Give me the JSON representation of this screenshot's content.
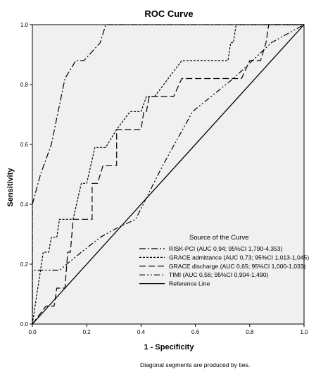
{
  "chart_data": {
    "type": "line",
    "title": "ROC Curve",
    "xlabel": "1 - Specificity",
    "ylabel": "Sensitivity",
    "xlim": [
      0,
      1
    ],
    "ylim": [
      0,
      1
    ],
    "x_ticks": [
      "0.0",
      "0.2",
      "0.4",
      "0.6",
      "0.8",
      "1.0"
    ],
    "y_ticks": [
      "0.0",
      "0.2",
      "0.4",
      "0.6",
      "0.8",
      "1.0"
    ],
    "grid": false,
    "background_color": "#f0f0f0",
    "legend_title": "Source of the Curve",
    "legend_position": "bottom-right",
    "footnote": "Diagonal segments are produced by ties.",
    "series": [
      {
        "name": "RISK-PCI (AUC 0,94; 95%CI 1,790-4,353)",
        "dash": "dash-dot",
        "points": [
          [
            0,
            0
          ],
          [
            0,
            0.4
          ],
          [
            0.03,
            0.5
          ],
          [
            0.07,
            0.6
          ],
          [
            0.12,
            0.82
          ],
          [
            0.16,
            0.88
          ],
          [
            0.19,
            0.88
          ],
          [
            0.25,
            0.94
          ],
          [
            0.27,
            1.0
          ],
          [
            1.0,
            1.0
          ]
        ]
      },
      {
        "name": "GRACE admittance (AUC 0,73; 95%CI 1,013-1,045)",
        "dash": "short-dash",
        "points": [
          [
            0,
            0
          ],
          [
            0.02,
            0.12
          ],
          [
            0.03,
            0.18
          ],
          [
            0.04,
            0.24
          ],
          [
            0.06,
            0.24
          ],
          [
            0.07,
            0.29
          ],
          [
            0.09,
            0.29
          ],
          [
            0.1,
            0.35
          ],
          [
            0.15,
            0.35
          ],
          [
            0.18,
            0.47
          ],
          [
            0.2,
            0.47
          ],
          [
            0.23,
            0.59
          ],
          [
            0.27,
            0.59
          ],
          [
            0.31,
            0.65
          ],
          [
            0.36,
            0.71
          ],
          [
            0.4,
            0.71
          ],
          [
            0.42,
            0.76
          ],
          [
            0.45,
            0.76
          ],
          [
            0.5,
            0.82
          ],
          [
            0.55,
            0.88
          ],
          [
            0.6,
            0.88
          ],
          [
            0.72,
            0.88
          ],
          [
            0.73,
            0.94
          ],
          [
            0.74,
            0.94
          ],
          [
            0.75,
            1.0
          ],
          [
            1.0,
            1.0
          ]
        ]
      },
      {
        "name": "GRACE discharge (AUC 0,65; 95%CI 1,000-1,033)",
        "dash": "long-dash",
        "points": [
          [
            0,
            0
          ],
          [
            0.05,
            0.06
          ],
          [
            0.08,
            0.06
          ],
          [
            0.09,
            0.12
          ],
          [
            0.12,
            0.12
          ],
          [
            0.13,
            0.24
          ],
          [
            0.14,
            0.24
          ],
          [
            0.15,
            0.35
          ],
          [
            0.22,
            0.35
          ],
          [
            0.22,
            0.47
          ],
          [
            0.24,
            0.47
          ],
          [
            0.26,
            0.53
          ],
          [
            0.31,
            0.53
          ],
          [
            0.31,
            0.65
          ],
          [
            0.4,
            0.65
          ],
          [
            0.41,
            0.71
          ],
          [
            0.42,
            0.71
          ],
          [
            0.43,
            0.76
          ],
          [
            0.52,
            0.76
          ],
          [
            0.55,
            0.82
          ],
          [
            0.75,
            0.82
          ],
          [
            0.77,
            0.82
          ],
          [
            0.8,
            0.88
          ],
          [
            0.84,
            0.88
          ],
          [
            0.86,
            0.94
          ],
          [
            0.87,
            1.0
          ],
          [
            1.0,
            1.0
          ]
        ]
      },
      {
        "name": "TIMI (AUC 0,56; 95%CI 0,904-1,490)",
        "dash": "dash-dot-dot",
        "points": [
          [
            0,
            0
          ],
          [
            0,
            0.18
          ],
          [
            0.1,
            0.18
          ],
          [
            0.18,
            0.24
          ],
          [
            0.25,
            0.29
          ],
          [
            0.31,
            0.32
          ],
          [
            0.38,
            0.35
          ],
          [
            0.48,
            0.53
          ],
          [
            0.59,
            0.71
          ],
          [
            0.74,
            0.82
          ],
          [
            0.81,
            0.88
          ],
          [
            0.88,
            0.94
          ],
          [
            1.0,
            1.0
          ]
        ]
      },
      {
        "name": "Reference Line",
        "dash": "solid",
        "points": [
          [
            0,
            0
          ],
          [
            1,
            1
          ]
        ]
      }
    ]
  }
}
